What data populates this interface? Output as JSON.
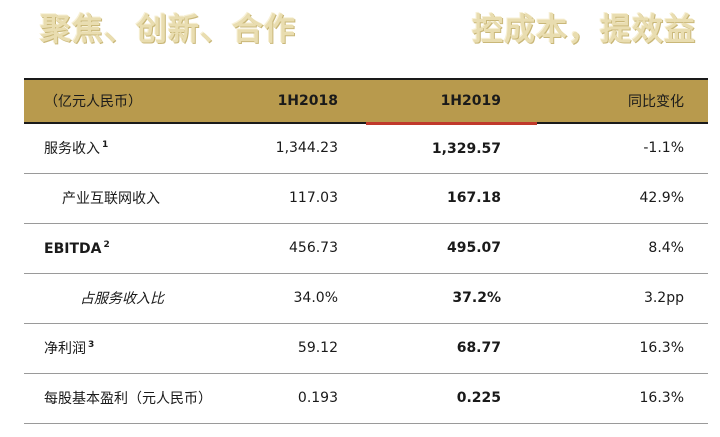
{
  "slogans": {
    "left": "聚焦、创新、合作",
    "right": "控成本，提效益"
  },
  "table": {
    "headers": {
      "label": "（亿元人民币）",
      "h2018": "1H2018",
      "h2019": "1H2019",
      "change": "同比变化"
    },
    "rows": [
      {
        "label": "服务收入",
        "note": "1",
        "h2018": "1,344.23",
        "h2019": "1,329.57",
        "change": "-1.1%"
      },
      {
        "label": "产业互联网收入",
        "note": "",
        "h2018": "117.03",
        "h2019": "167.18",
        "change": "42.9%"
      },
      {
        "label": "EBITDA",
        "note": "2",
        "h2018": "456.73",
        "h2019": "495.07",
        "change": "8.4%"
      },
      {
        "label": "占服务收入比",
        "note": "",
        "h2018": "34.0%",
        "h2019": "37.2%",
        "change": "3.2pp"
      },
      {
        "label": "净利润",
        "note": "3",
        "h2018": "59.12",
        "h2019": "68.77",
        "change": "16.3%"
      },
      {
        "label": "每股基本盈利（元人民币）",
        "note": "",
        "h2018": "0.193",
        "h2019": "0.225",
        "change": "16.3%"
      }
    ]
  }
}
